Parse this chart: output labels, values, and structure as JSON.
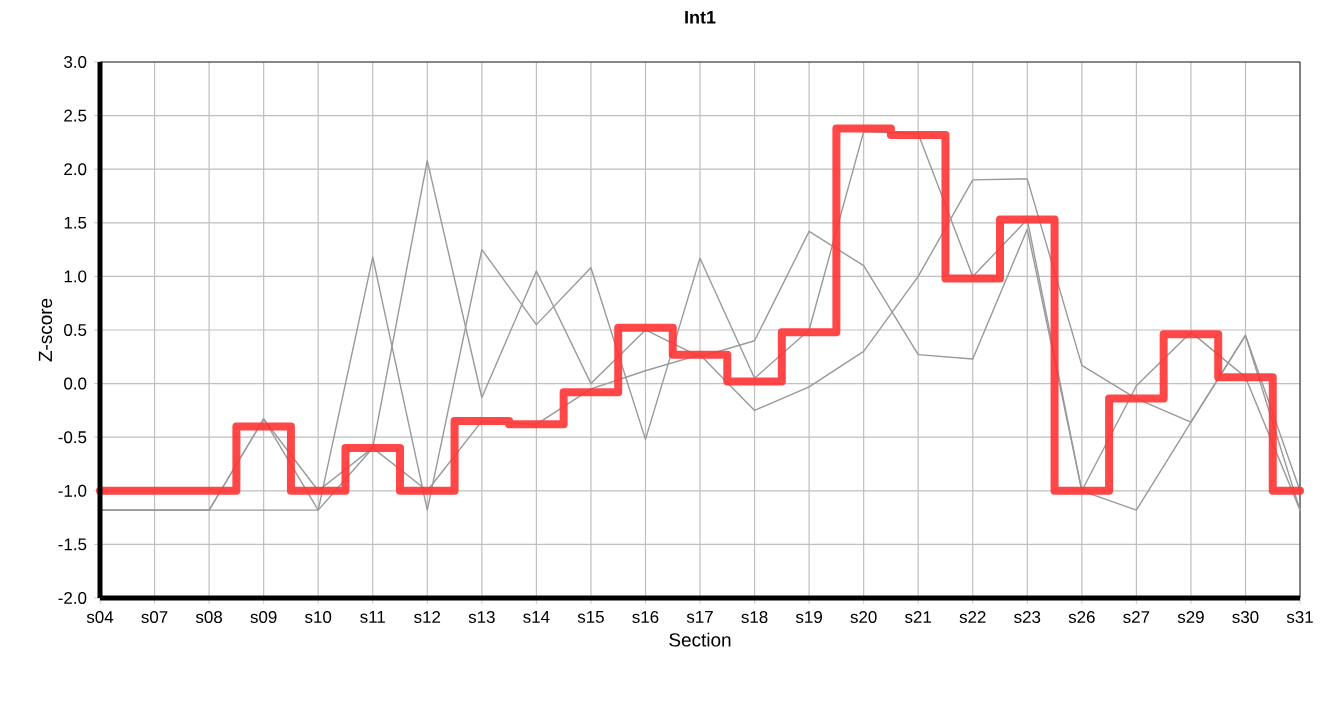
{
  "chart_data": {
    "type": "line",
    "title": "Int1",
    "xlabel": "Section",
    "ylabel": "Z-score",
    "categories": [
      "s04",
      "s07",
      "s08",
      "s09",
      "s10",
      "s11",
      "s12",
      "s13",
      "s14",
      "s15",
      "s16",
      "s17",
      "s18",
      "s19",
      "s20",
      "s21",
      "s22",
      "s23",
      "s26",
      "s27",
      "s29",
      "s30",
      "s31"
    ],
    "series": [
      {
        "color": "#999999",
        "values": [
          -1.18,
          -1.18,
          -1.18,
          -0.33,
          -1.0,
          -0.6,
          2.08,
          -0.13,
          1.05,
          0.0,
          0.5,
          0.25,
          0.4,
          1.42,
          1.1,
          0.27,
          0.23,
          1.44,
          -1.0,
          -0.02,
          0.48,
          0.06,
          -1.18
        ]
      },
      {
        "color": "#999999",
        "values": [
          -1.18,
          -1.18,
          -1.18,
          -1.18,
          -1.18,
          1.18,
          -1.18,
          1.25,
          0.55,
          1.08,
          -0.52,
          1.17,
          0.05,
          0.5,
          2.35,
          2.33,
          1.0,
          1.53,
          -1.0,
          -1.18,
          -0.36,
          0.45,
          -1.18
        ]
      },
      {
        "color": "#999999",
        "values": [
          -1.18,
          -1.18,
          -1.18,
          -0.33,
          -1.18,
          -0.6,
          -1.0,
          -0.35,
          -0.38,
          -0.05,
          0.12,
          0.27,
          -0.25,
          -0.03,
          0.3,
          1.0,
          1.9,
          1.91,
          0.17,
          -0.14,
          -0.36,
          0.45,
          -1.0
        ]
      },
      {
        "type": "step",
        "color": "#ff3333",
        "values": [
          -1.0,
          -1.0,
          -1.0,
          -0.4,
          -1.0,
          -0.6,
          -1.0,
          -0.35,
          -0.38,
          -0.08,
          0.52,
          0.27,
          0.02,
          0.48,
          2.38,
          2.32,
          0.98,
          1.53,
          -1.0,
          -0.14,
          0.46,
          0.06,
          -1.0
        ]
      }
    ],
    "ylim": [
      -2.0,
      3.0
    ],
    "yticks": [
      {
        "value": -2.0,
        "label": "-2.0"
      },
      {
        "value": -1.5,
        "label": "-1.5"
      },
      {
        "value": -1.0,
        "label": "-1.0"
      },
      {
        "value": -0.5,
        "label": "-0.5"
      },
      {
        "value": 0.0,
        "label": "0.0"
      },
      {
        "value": 0.5,
        "label": "0.5"
      },
      {
        "value": 1.0,
        "label": "1.0"
      },
      {
        "value": 1.5,
        "label": "1.5"
      },
      {
        "value": 2.0,
        "label": "2.0"
      },
      {
        "value": 2.5,
        "label": "2.5"
      },
      {
        "value": 3.0,
        "label": "3.0"
      }
    ],
    "grid": true,
    "marker": "none",
    "line_style": "solid"
  }
}
